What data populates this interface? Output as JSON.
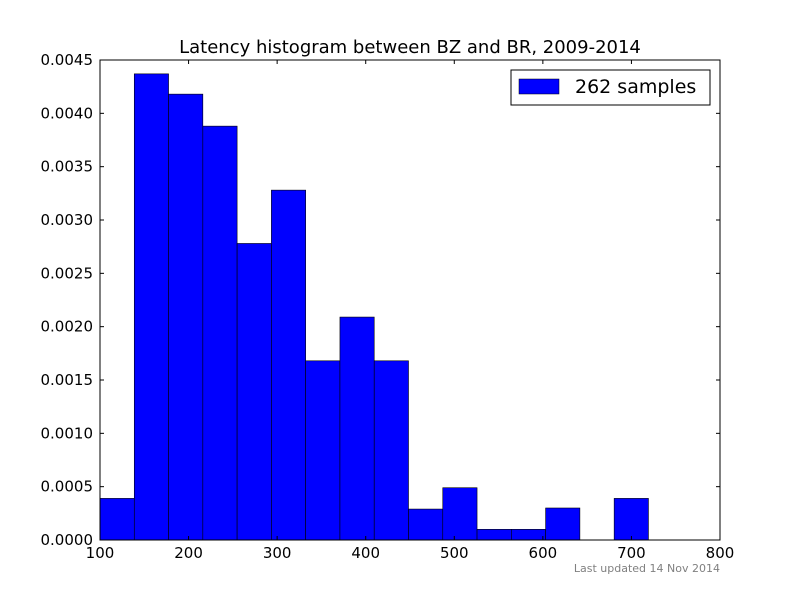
{
  "chart_data": {
    "type": "bar",
    "title": "Latency histogram between BZ and BR, 2009-2014",
    "xlabel": "",
    "ylabel": "",
    "xlim": [
      100,
      800
    ],
    "ylim": [
      0,
      0.0045
    ],
    "xticks": [
      100,
      200,
      300,
      400,
      500,
      600,
      700,
      800
    ],
    "yticks": [
      0.0,
      0.0005,
      0.001,
      0.0015,
      0.002,
      0.0025,
      0.003,
      0.0035,
      0.004,
      0.0045
    ],
    "bin_edges": [
      100,
      138.7,
      177.4,
      216.1,
      254.8,
      293.5,
      332.2,
      370.9,
      409.6,
      448.3,
      487.0,
      525.7,
      564.4,
      603.1,
      641.8,
      680.5,
      719.2
    ],
    "values": [
      0.00039,
      0.00437,
      0.00418,
      0.00388,
      0.00278,
      0.00328,
      0.00168,
      0.00209,
      0.00168,
      0.00029,
      0.00049,
      0.0001,
      0.0001,
      0.0003,
      0.0,
      0.00039
    ],
    "legend": {
      "position": "top-right",
      "entries": [
        {
          "label": "262 samples",
          "color": "#0000ff"
        }
      ]
    },
    "grid": false,
    "bar_color": "#0000ff"
  },
  "footer": {
    "text": "Last updated 14 Nov 2014"
  }
}
